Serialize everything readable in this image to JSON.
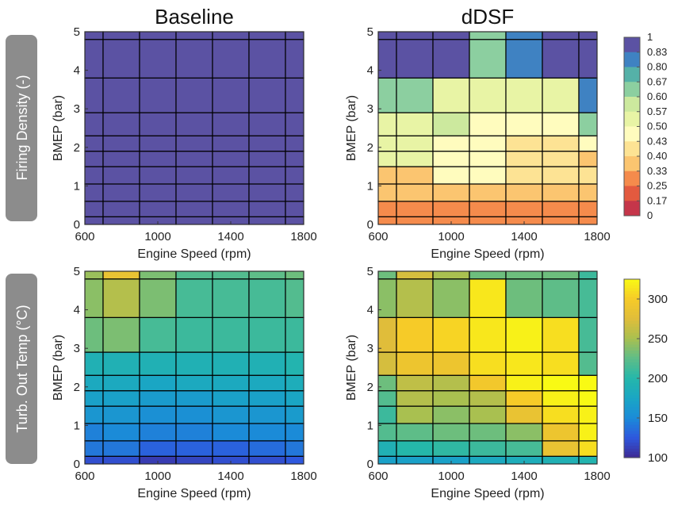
{
  "row_labels": [
    "Firing Density (-)",
    "Turb. Out Temp (°C)"
  ],
  "chart_data": [
    {
      "type": "heatmap",
      "title": "Baseline",
      "xlabel": "Engine Speed (rpm)",
      "ylabel": "BMEP (bar)",
      "xlim": [
        600,
        1800
      ],
      "ylim": [
        0,
        5
      ],
      "xticks": [
        600,
        1000,
        1400,
        1800
      ],
      "yticks": [
        0,
        1,
        2,
        3,
        4,
        5
      ],
      "x_edges": [
        600,
        700,
        900,
        1100,
        1300,
        1500,
        1700,
        1800
      ],
      "y_edges": [
        0,
        0.2,
        0.6,
        1.05,
        1.5,
        1.9,
        2.3,
        2.9,
        3.8,
        4.8,
        5
      ],
      "colorscale": "firing_density",
      "values": [
        [
          1,
          1,
          1,
          1,
          1,
          1,
          1
        ],
        [
          1,
          1,
          1,
          1,
          1,
          1,
          1
        ],
        [
          1,
          1,
          1,
          1,
          1,
          1,
          1
        ],
        [
          1,
          1,
          1,
          1,
          1,
          1,
          1
        ],
        [
          1,
          1,
          1,
          1,
          1,
          1,
          1
        ],
        [
          1,
          1,
          1,
          1,
          1,
          1,
          1
        ],
        [
          1,
          1,
          1,
          1,
          1,
          1,
          1
        ],
        [
          1,
          1,
          1,
          1,
          1,
          1,
          1
        ],
        [
          1,
          1,
          1,
          1,
          1,
          1,
          1
        ],
        [
          1,
          1,
          1,
          1,
          1,
          1,
          1
        ]
      ]
    },
    {
      "type": "heatmap",
      "title": "dDSF",
      "xlabel": "Engine Speed (rpm)",
      "ylabel": "BMEP (bar)",
      "xlim": [
        600,
        1800
      ],
      "ylim": [
        0,
        5
      ],
      "xticks": [
        600,
        1000,
        1400,
        1800
      ],
      "yticks": [
        0,
        1,
        2,
        3,
        4,
        5
      ],
      "x_edges": [
        600,
        700,
        900,
        1100,
        1300,
        1500,
        1700,
        1800
      ],
      "y_edges": [
        0,
        0.2,
        0.6,
        1.05,
        1.5,
        1.9,
        2.3,
        2.9,
        3.8,
        4.8,
        5
      ],
      "colorscale": "firing_density",
      "values": [
        [
          0.33,
          0.33,
          0.33,
          0.33,
          0.33,
          0.33,
          0.33
        ],
        [
          0.33,
          0.33,
          0.33,
          0.33,
          0.33,
          0.33,
          0.33
        ],
        [
          0.4,
          0.4,
          0.4,
          0.4,
          0.4,
          0.4,
          0.4
        ],
        [
          0.4,
          0.4,
          0.5,
          0.5,
          0.43,
          0.43,
          0.43
        ],
        [
          0.57,
          0.57,
          0.5,
          0.5,
          0.43,
          0.43,
          0.4
        ],
        [
          0.57,
          0.57,
          0.5,
          0.5,
          0.43,
          0.43,
          0.5
        ],
        [
          0.57,
          0.57,
          0.6,
          0.5,
          0.5,
          0.5,
          0.67
        ],
        [
          0.67,
          0.67,
          0.57,
          0.57,
          0.57,
          0.57,
          0.83
        ],
        [
          1,
          1,
          1,
          0.67,
          0.83,
          1,
          1
        ],
        [
          1,
          1,
          1,
          0.67,
          0.83,
          1,
          1
        ]
      ],
      "colorbar": {
        "ticks": [
          "1",
          "0.83",
          "0.80",
          "0.67",
          "0.60",
          "0.57",
          "0.50",
          "0.43",
          "0.40",
          "0.33",
          "0.25",
          "0.17",
          "0"
        ]
      }
    },
    {
      "type": "heatmap",
      "title": "",
      "xlabel": "Engine Speed (rpm)",
      "ylabel": "BMEP (bar)",
      "xlim": [
        600,
        1800
      ],
      "ylim": [
        0,
        5
      ],
      "xticks": [
        600,
        1000,
        1400,
        1800
      ],
      "yticks": [
        0,
        1,
        2,
        3,
        4,
        5
      ],
      "x_edges": [
        600,
        700,
        900,
        1100,
        1300,
        1500,
        1700,
        1800
      ],
      "y_edges": [
        0,
        0.2,
        0.6,
        1.05,
        1.5,
        1.9,
        2.3,
        2.9,
        3.8,
        4.8,
        5
      ],
      "colorscale": "temperature",
      "values": [
        [
          120,
          120,
          110,
          115,
          120,
          120,
          125
        ],
        [
          140,
          140,
          130,
          130,
          130,
          135,
          140
        ],
        [
          145,
          150,
          145,
          145,
          150,
          150,
          150
        ],
        [
          160,
          160,
          155,
          155,
          160,
          160,
          165
        ],
        [
          170,
          170,
          165,
          165,
          170,
          170,
          175
        ],
        [
          180,
          180,
          175,
          180,
          180,
          180,
          185
        ],
        [
          190,
          190,
          190,
          190,
          190,
          190,
          195
        ],
        [
          230,
          235,
          215,
          210,
          210,
          210,
          210
        ],
        [
          240,
          255,
          235,
          215,
          215,
          215,
          220
        ],
        [
          245,
          285,
          235,
          220,
          220,
          225,
          230
        ]
      ]
    },
    {
      "type": "heatmap",
      "title": "",
      "xlabel": "Engine Speed (rpm)",
      "ylabel": "BMEP (bar)",
      "xlim": [
        600,
        1800
      ],
      "ylim": [
        0,
        5
      ],
      "xticks": [
        600,
        1000,
        1400,
        1800
      ],
      "yticks": [
        0,
        1,
        2,
        3,
        4,
        5
      ],
      "x_edges": [
        600,
        700,
        900,
        1100,
        1300,
        1500,
        1700,
        1800
      ],
      "y_edges": [
        0,
        0.2,
        0.6,
        1.05,
        1.5,
        1.9,
        2.3,
        2.9,
        3.8,
        4.8,
        5
      ],
      "colorscale": "temperature",
      "values": [
        [
          170,
          170,
          170,
          180,
          185,
          190,
          195
        ],
        [
          190,
          200,
          205,
          210,
          215,
          285,
          310
        ],
        [
          220,
          225,
          230,
          230,
          240,
          290,
          320
        ],
        [
          210,
          250,
          240,
          250,
          285,
          310,
          320
        ],
        [
          220,
          255,
          250,
          255,
          300,
          320,
          325
        ],
        [
          230,
          260,
          255,
          295,
          320,
          325,
          325
        ],
        [
          270,
          290,
          290,
          310,
          315,
          310,
          220
        ],
        [
          275,
          300,
          305,
          315,
          320,
          310,
          215
        ],
        [
          240,
          255,
          240,
          315,
          230,
          225,
          215
        ],
        [
          230,
          270,
          250,
          230,
          230,
          230,
          210
        ]
      ],
      "colorbar": {
        "ticks": [
          "300",
          "250",
          "200",
          "150",
          "100"
        ],
        "tick_values": [
          300,
          250,
          200,
          150,
          100
        ],
        "range": [
          100,
          325
        ]
      }
    }
  ],
  "colors": {
    "firing_density": {
      "1": "#5b52a3",
      "0.83": "#3f82c2",
      "0.8": "#55b1a8",
      "0.67": "#8ccfa0",
      "0.6": "#cce99e",
      "0.57": "#e8f4a5",
      "0.5": "#fffcbe",
      "0.43": "#fde394",
      "0.4": "#fbc570",
      "0.33": "#f58b4c",
      "0.25": "#e35a3f",
      "0.17": "#c5364a",
      "0": "#9e0142"
    },
    "temperature_stops": [
      [
        100,
        "#3e2a94"
      ],
      [
        125,
        "#2e58de"
      ],
      [
        150,
        "#1b8bd8"
      ],
      [
        175,
        "#1aa6c4"
      ],
      [
        200,
        "#25b7aa"
      ],
      [
        225,
        "#5ebd88"
      ],
      [
        250,
        "#a9c050"
      ],
      [
        275,
        "#e0bd3a"
      ],
      [
        300,
        "#f6cb28"
      ],
      [
        325,
        "#f9fa14"
      ]
    ]
  }
}
